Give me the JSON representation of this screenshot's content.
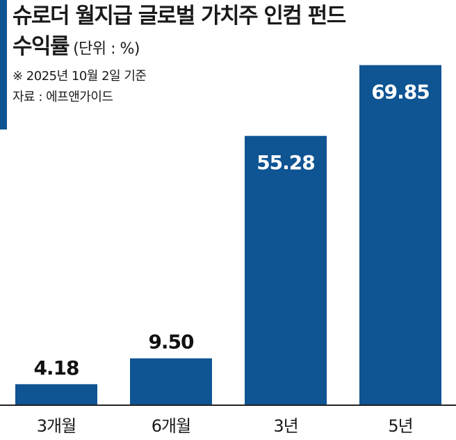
{
  "header": {
    "title_line1": "슈로더 월지급 글로벌 가치주 인컴 펀드",
    "title_line2": "수익률",
    "unit": "(단위 : %)",
    "note_date": "※ 2025년 10월 2일 기준",
    "source": "자료 : 에프앤가이드"
  },
  "colors": {
    "bar": "#0f5493",
    "accent": "#0f5493",
    "axis": "#222222",
    "value_label_dark": "#111111",
    "value_label_light": "#ffffff"
  },
  "chart_data": {
    "type": "bar",
    "categories": [
      "3개월",
      "6개월",
      "3년",
      "5년"
    ],
    "values": [
      4.18,
      9.5,
      55.28,
      69.85
    ],
    "value_labels": [
      "4.18",
      "9.50",
      "55.28",
      "69.85"
    ],
    "title": "슈로더 월지급 글로벌 가치주 인컴 펀드 수익률",
    "unit": "%",
    "ylim": [
      0,
      70.5
    ],
    "grid": false,
    "legend": "none"
  }
}
